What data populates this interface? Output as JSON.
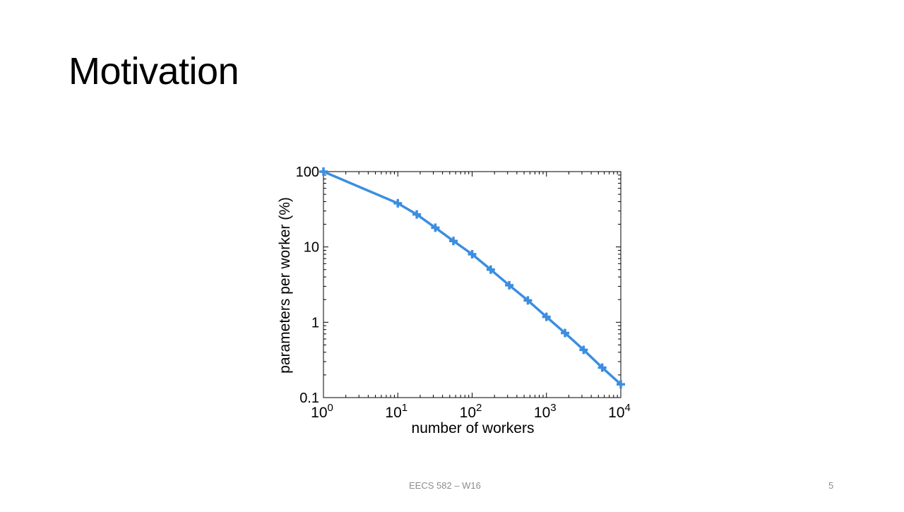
{
  "slide": {
    "title": "Motivation",
    "footer": "EECS 582 – W16",
    "page_number": "5"
  },
  "colors": {
    "line": "#3b8ee0",
    "axis": "#000000",
    "background": "#ffffff"
  },
  "chart_data": {
    "type": "line",
    "xlabel": "number of workers",
    "ylabel": "parameters per worker (%)",
    "x_scale": "log",
    "y_scale": "log",
    "xlim": [
      1,
      10000
    ],
    "ylim": [
      0.1,
      100
    ],
    "x_ticks": [
      {
        "value": 1,
        "base": "10",
        "exp": "0"
      },
      {
        "value": 10,
        "base": "10",
        "exp": "1"
      },
      {
        "value": 100,
        "base": "10",
        "exp": "2"
      },
      {
        "value": 1000,
        "base": "10",
        "exp": "3"
      },
      {
        "value": 10000,
        "base": "10",
        "exp": "4"
      }
    ],
    "y_ticks": [
      {
        "value": 0.1,
        "label": "0.1"
      },
      {
        "value": 1,
        "label": "1"
      },
      {
        "value": 10,
        "label": "10"
      },
      {
        "value": 100,
        "label": "100"
      }
    ],
    "grid": false,
    "marker": "plus",
    "series": [
      {
        "x": [
          1,
          10,
          18,
          32,
          56,
          100,
          178,
          316,
          562,
          1000,
          1778,
          3162,
          5623,
          10000
        ],
        "y": [
          100,
          38,
          27,
          18,
          12,
          8,
          5,
          3.1,
          1.95,
          1.18,
          0.72,
          0.43,
          0.25,
          0.15
        ]
      }
    ]
  }
}
